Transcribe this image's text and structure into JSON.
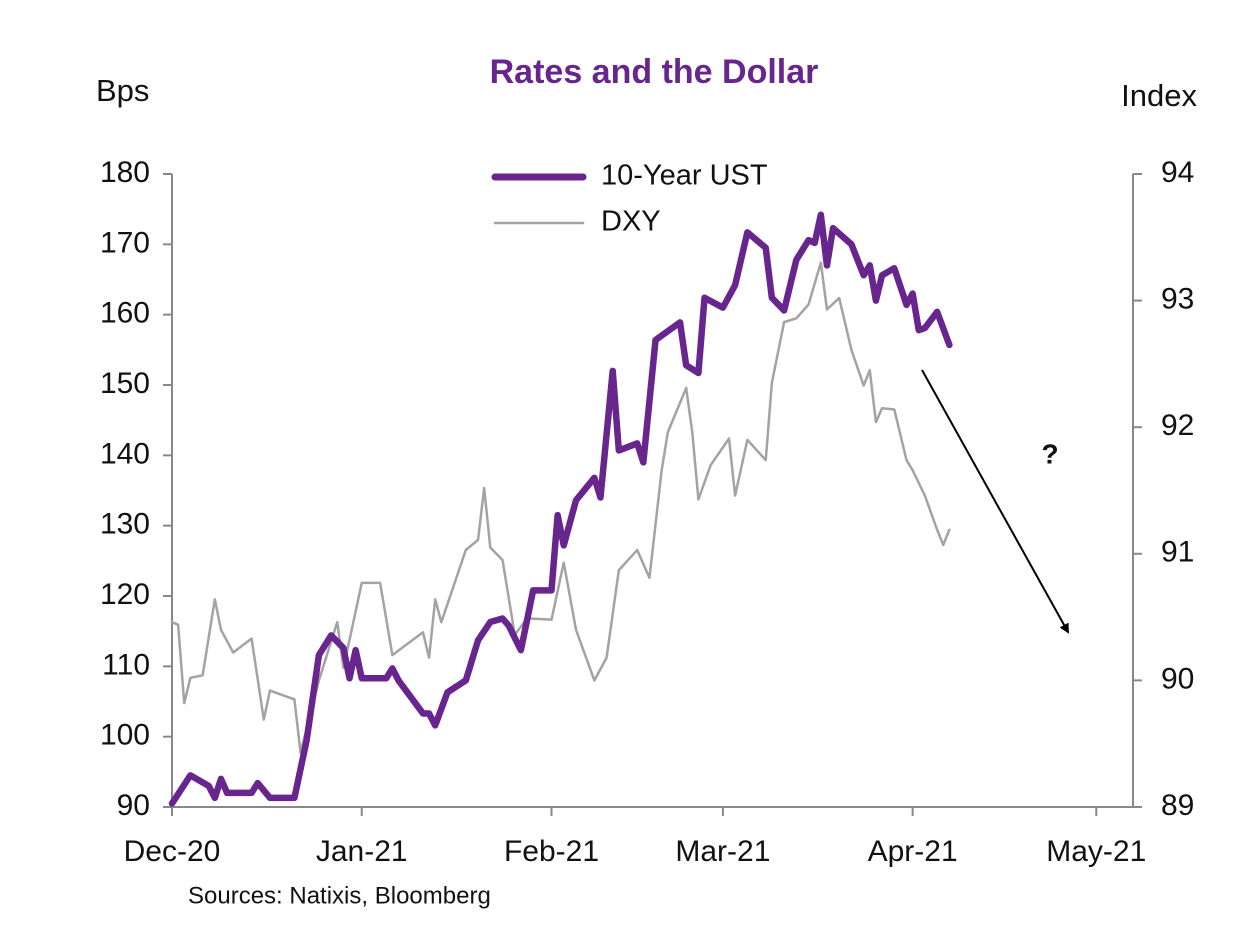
{
  "chart_data": {
    "type": "line",
    "title": "Rates and the Dollar",
    "y_label": "Bps",
    "y2_label": "Index",
    "source": "Sources: Natixis, Bloomberg",
    "annotation": "?",
    "xlim": [
      0,
      157
    ],
    "xticks": [
      {
        "value": 0,
        "label": "Dec-20"
      },
      {
        "value": 31,
        "label": "Jan-21"
      },
      {
        "value": 62,
        "label": "Feb-21"
      },
      {
        "value": 90,
        "label": "Mar-21"
      },
      {
        "value": 121,
        "label": "Apr-21"
      },
      {
        "value": 151,
        "label": "May-21"
      }
    ],
    "ylim": [
      90,
      180
    ],
    "yticks": [
      90,
      100,
      110,
      120,
      130,
      140,
      150,
      160,
      170,
      180
    ],
    "y2lim": [
      89,
      94
    ],
    "y2ticks": [
      89,
      90,
      91,
      92,
      93,
      94
    ],
    "series": [
      {
        "name": "10-Year UST",
        "color": "#68258e",
        "axis": "y",
        "x": [
          0,
          3,
          6,
          7,
          8,
          9,
          13,
          14,
          16,
          20,
          22,
          24,
          26,
          28,
          29,
          30,
          31,
          35,
          36,
          37,
          41,
          42,
          43,
          45,
          48,
          50,
          52,
          54,
          55,
          57,
          59,
          62,
          63,
          64,
          66,
          69,
          70,
          72,
          73,
          76,
          77,
          79,
          83,
          84,
          86,
          87,
          90,
          92,
          94,
          97,
          98,
          100,
          102,
          104,
          105,
          106,
          107,
          108,
          111,
          113,
          114,
          115,
          116,
          118,
          120,
          121,
          122,
          123,
          125,
          127
        ],
        "values": [
          90.5,
          94.5,
          93,
          91.3,
          94,
          92,
          92,
          93.4,
          91.3,
          91.3,
          99.5,
          111.6,
          114.4,
          112.6,
          108.3,
          112.3,
          108.3,
          108.3,
          109.7,
          108,
          103.3,
          103.3,
          101.6,
          106.3,
          108,
          113.7,
          116.3,
          116.8,
          115.8,
          112.3,
          120.8,
          120.8,
          131.5,
          127.2,
          133.6,
          136.8,
          134,
          152,
          140.7,
          141.7,
          139,
          156.4,
          158.9,
          152.8,
          151.7,
          162.4,
          161,
          164.2,
          171.7,
          169.5,
          162.4,
          160.6,
          167.8,
          170.6,
          170.2,
          174.2,
          167,
          172.3,
          170,
          165.6,
          167,
          162,
          165.6,
          166.6,
          161.4,
          163,
          157.8,
          158.1,
          160.4,
          155.7
        ]
      },
      {
        "name": "DXY",
        "color": "#a3a3a3",
        "axis": "y2",
        "x": [
          0,
          1,
          2,
          3,
          5,
          7,
          8,
          10,
          13,
          15,
          16,
          20,
          21,
          24,
          27,
          28,
          29,
          31,
          34,
          36,
          41,
          42,
          43,
          44,
          48,
          50,
          51,
          52,
          54,
          56,
          58,
          62,
          64,
          66,
          69,
          71,
          73,
          76,
          78,
          80,
          81,
          84,
          85,
          86,
          88,
          91,
          92,
          94,
          97,
          98,
          100,
          102,
          104,
          106,
          107,
          109,
          111,
          113,
          114,
          115,
          116,
          118,
          120,
          121,
          123,
          125,
          126,
          127
        ],
        "values": [
          90.46,
          90.44,
          89.82,
          90.02,
          90.04,
          90.64,
          90.4,
          90.22,
          90.33,
          89.69,
          89.92,
          89.85,
          89.43,
          90.0,
          90.46,
          90.1,
          90.32,
          90.77,
          90.77,
          90.2,
          90.38,
          90.18,
          90.64,
          90.46,
          91.03,
          91.11,
          91.52,
          91.05,
          90.95,
          90.36,
          90.49,
          90.48,
          90.93,
          90.4,
          90.0,
          90.18,
          90.87,
          91.03,
          90.81,
          91.66,
          91.96,
          92.31,
          91.96,
          91.43,
          91.7,
          91.91,
          91.46,
          91.9,
          91.74,
          92.35,
          92.83,
          92.86,
          92.97,
          93.3,
          92.93,
          93.02,
          92.61,
          92.33,
          92.45,
          92.04,
          92.15,
          92.14,
          91.74,
          91.66,
          91.46,
          91.19,
          91.07,
          91.19
        ]
      }
    ]
  }
}
